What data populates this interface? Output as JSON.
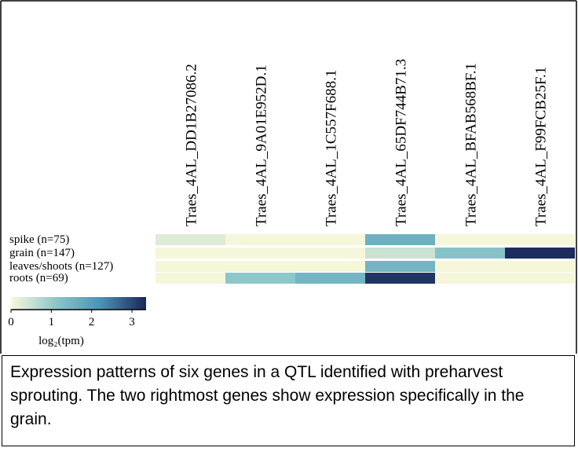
{
  "chart_data": {
    "type": "heatmap",
    "categories": [
      "Traes_4AL_DD1B27086.2",
      "Traes_4AL_9A01E952D.1",
      "Traes_4AL_1C557F688.1",
      "Traes_4AL_65DF744B71.3",
      "Traes_4AL_BFAB568BF.1",
      "Traes_4AL_F99FCB25F.1"
    ],
    "rows": [
      "spike (n=75)",
      "grain (n=147)",
      "leaves/shoots (n=127)",
      "roots (n=69)"
    ],
    "values": [
      [
        0.3,
        0.05,
        0.05,
        1.6,
        0.05,
        0.05
      ],
      [
        0.05,
        0.05,
        0.05,
        0.5,
        1.2,
        3.3
      ],
      [
        0.05,
        0.05,
        0.05,
        1.5,
        0.05,
        0.05
      ],
      [
        0.05,
        1.1,
        1.5,
        3.2,
        0.05,
        0.05
      ]
    ],
    "colormap": [
      "#fbf8dc",
      "#8cc6c9",
      "#4a93b5",
      "#1b2659"
    ],
    "clim": [
      0,
      3.35
    ],
    "cticks": [
      0,
      1,
      2,
      3
    ],
    "colorbar_label": "log₂(tpm)"
  },
  "caption": "Expression patterns of six genes in a QTL identified with preharvest sprouting. The two rightmost genes show expression specifically in the grain."
}
